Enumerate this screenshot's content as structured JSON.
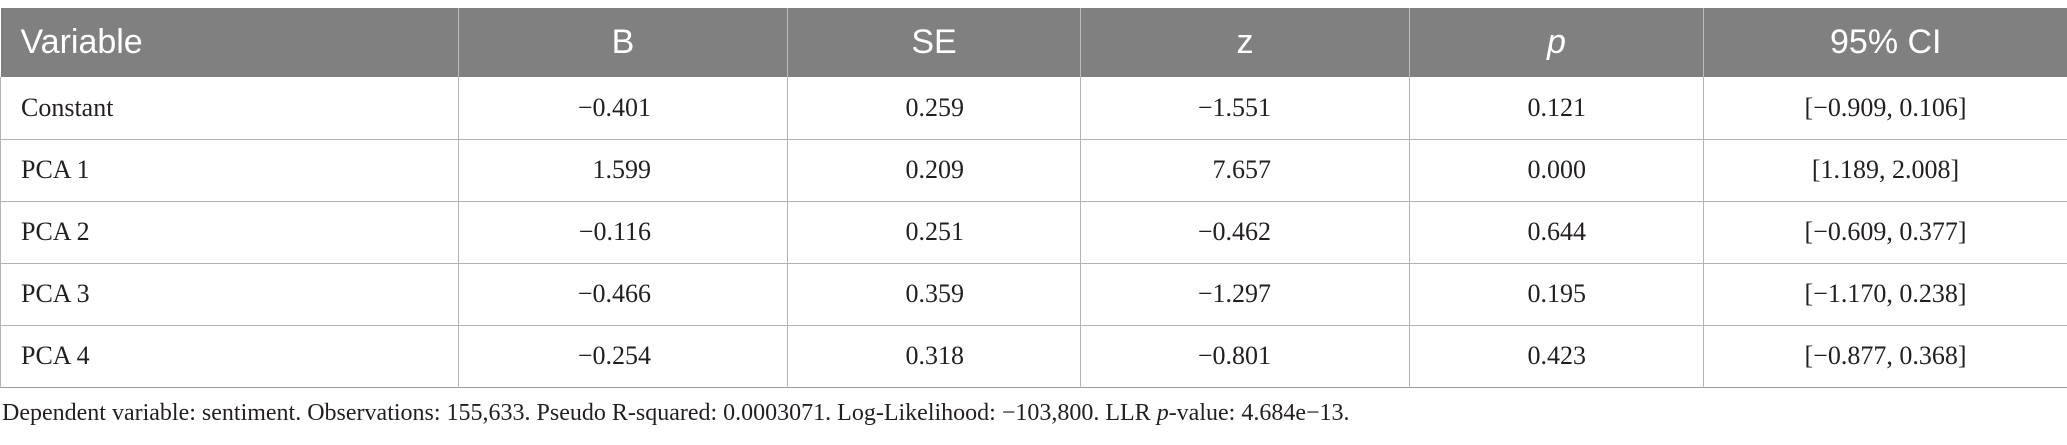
{
  "table": {
    "headers": [
      "Variable",
      "B",
      "SE",
      "z",
      "p",
      "95% CI"
    ],
    "rows": [
      [
        "Constant",
        "−0.401",
        "0.259",
        "−1.551",
        "0.121",
        "[−0.909, 0.106]"
      ],
      [
        "PCA 1",
        "1.599",
        "0.209",
        "7.657",
        "0.000",
        "[1.189, 2.008]"
      ],
      [
        "PCA 2",
        "−0.116",
        "0.251",
        "−0.462",
        "0.644",
        "[−0.609, 0.377]"
      ],
      [
        "PCA 3",
        "−0.466",
        "0.359",
        "−1.297",
        "0.195",
        "[−1.170, 0.238]"
      ],
      [
        "PCA 4",
        "−0.254",
        "0.318",
        "−0.801",
        "0.423",
        "[−0.877, 0.368]"
      ]
    ]
  },
  "footnote": {
    "part1": "Dependent variable: sentiment. Observations: 155,633. Pseudo R-squared: 0.0003071. Log-Likelihood: −103,800. LLR ",
    "italic": "p",
    "part2": "-value: 4.684e−13."
  }
}
